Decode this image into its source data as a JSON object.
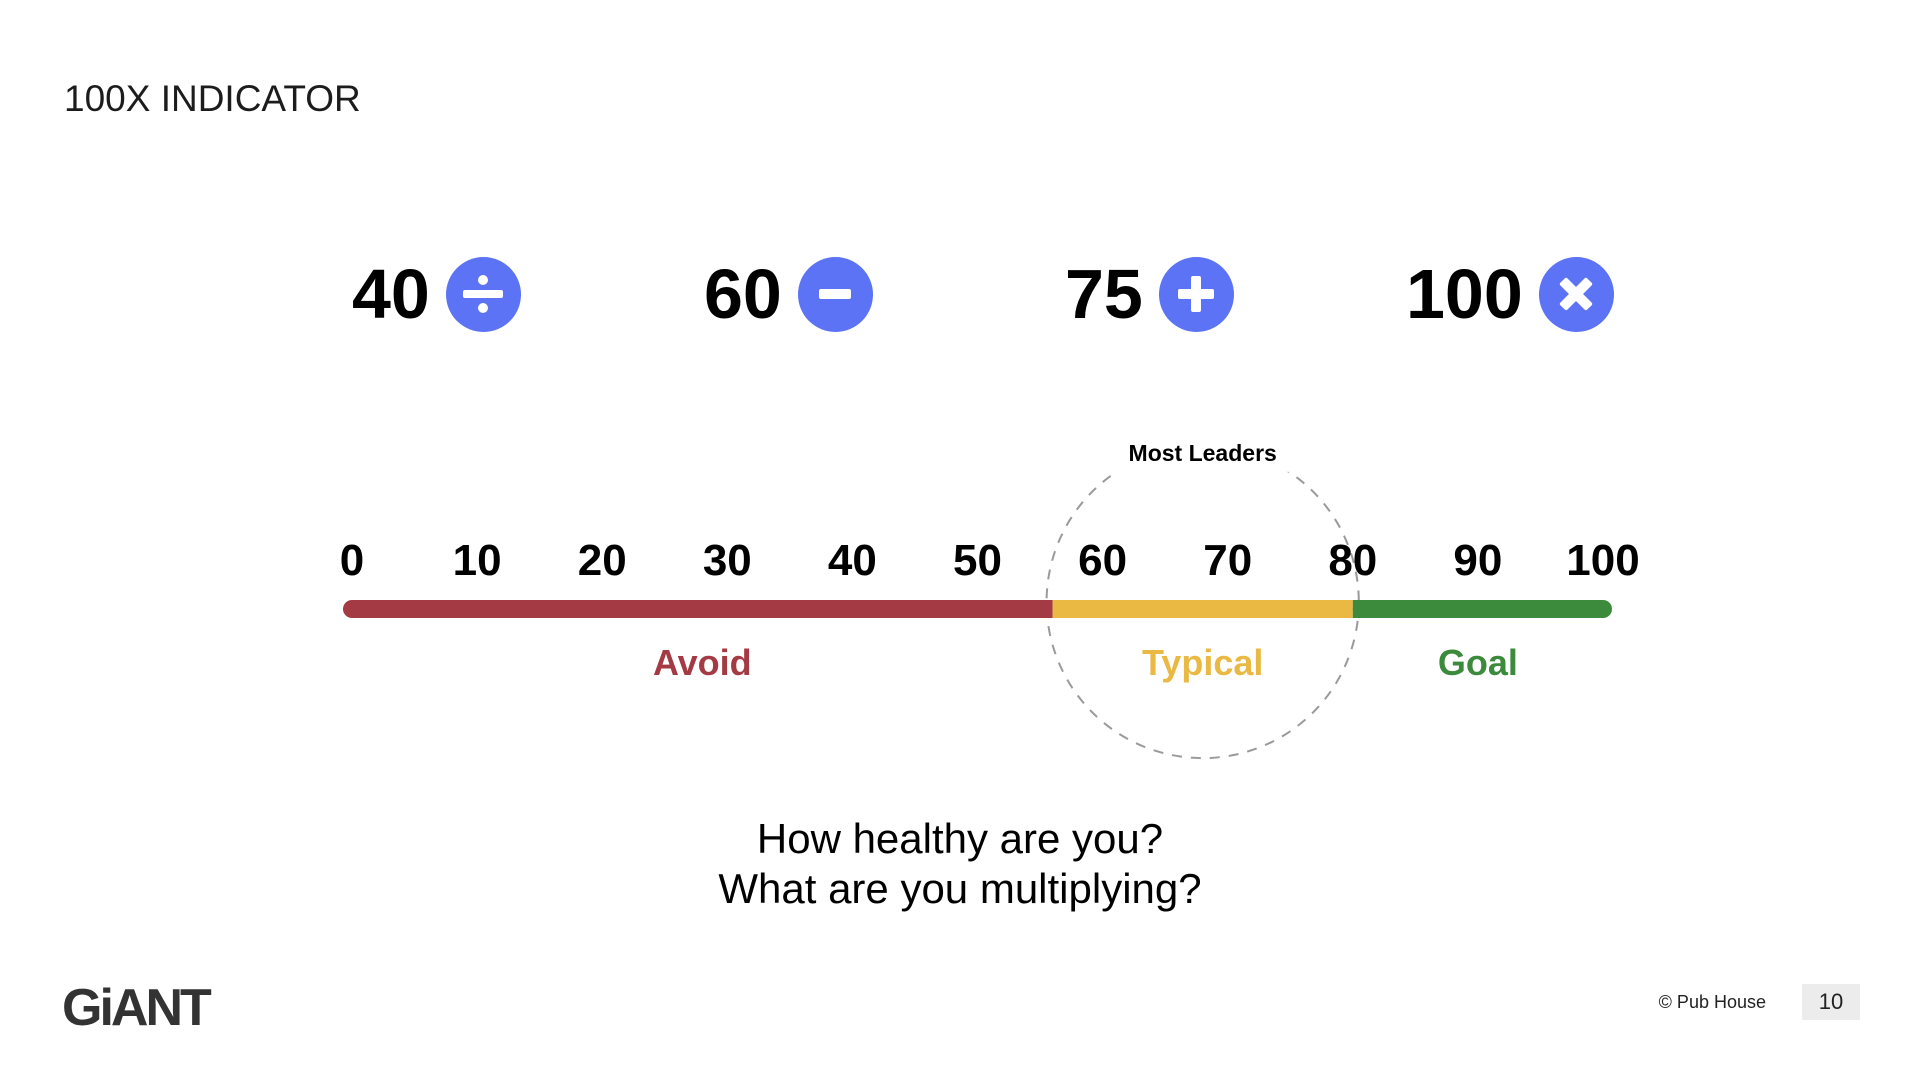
{
  "slide": {
    "title": "100X INDICATOR"
  },
  "operators": [
    {
      "number": "40",
      "symbol": "divide-icon"
    },
    {
      "number": "60",
      "symbol": "minus-icon"
    },
    {
      "number": "75",
      "symbol": "plus-icon"
    },
    {
      "number": "100",
      "symbol": "times-icon"
    }
  ],
  "operator_color": "#5B73F4",
  "scale": {
    "min": 0,
    "max": 100,
    "ticks": [
      "0",
      "10",
      "20",
      "30",
      "40",
      "50",
      "60",
      "70",
      "80",
      "90",
      "100"
    ],
    "zones": [
      {
        "label": "Avoid",
        "from": 0,
        "to": 56,
        "color": "#A43A43"
      },
      {
        "label": "Typical",
        "from": 56,
        "to": 80,
        "color": "#E9B944"
      },
      {
        "label": "Goal",
        "from": 80,
        "to": 100,
        "color": "#3C8A3B"
      }
    ],
    "callout": {
      "label": "Most Leaders",
      "from": 56,
      "to": 80
    }
  },
  "questions": {
    "line1": "How healthy are you?",
    "line2": "What are you multiplying?"
  },
  "footer": {
    "logo": "GiANT",
    "copyright": "© Pub House",
    "page": "10"
  }
}
